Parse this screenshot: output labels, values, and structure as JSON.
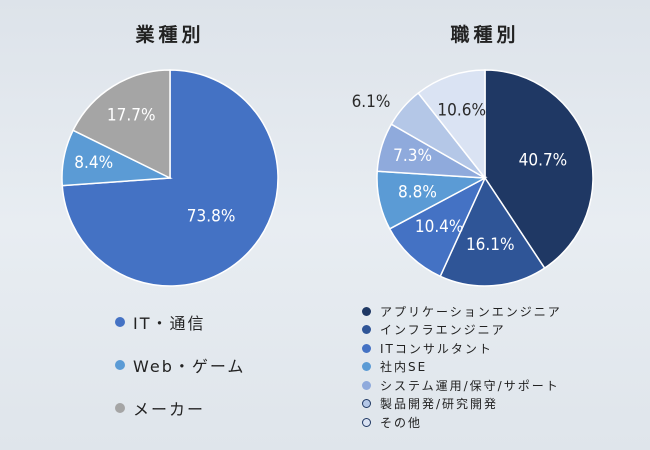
{
  "chart_data": [
    {
      "type": "pie",
      "title": "業種別",
      "slices": [
        {
          "label": "IT・通信",
          "value": 73.8,
          "display": "73.8%",
          "color": "#4472c4"
        },
        {
          "label": "Web・ゲーム",
          "value": 8.4,
          "display": "8.4%",
          "color": "#5b9bd5"
        },
        {
          "label": "メーカー",
          "value": 17.7,
          "display": "17.7%",
          "color": "#a5a5a5"
        }
      ],
      "legend_position": "bottom"
    },
    {
      "type": "pie",
      "title": "職種別",
      "slices": [
        {
          "label": "アプリケーションエンジニア",
          "value": 40.7,
          "display": "40.7%",
          "color": "#1f3864"
        },
        {
          "label": "インフラエンジニア",
          "value": 16.1,
          "display": "16.1%",
          "color": "#2f5597"
        },
        {
          "label": "ITコンサルタント",
          "value": 10.4,
          "display": "10.4%",
          "color": "#4472c4"
        },
        {
          "label": "社内SE",
          "value": 8.8,
          "display": "8.8%",
          "color": "#5b9bd5"
        },
        {
          "label": "システム運用/保守/サポート",
          "value": 7.3,
          "display": "7.3%",
          "color": "#8faadc"
        },
        {
          "label": "製品開発/研究開発",
          "value": 6.1,
          "display": "6.1%",
          "color": "#b4c7e7"
        },
        {
          "label": "その他",
          "value": 10.6,
          "display": "10.6%",
          "color": "#dae3f3"
        }
      ],
      "legend_position": "bottom"
    }
  ]
}
